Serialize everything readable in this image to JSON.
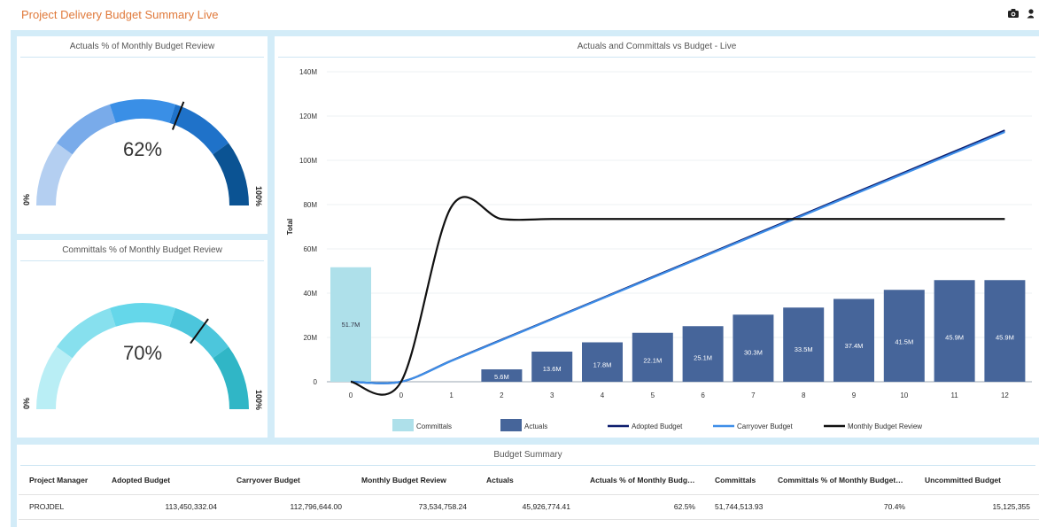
{
  "page": {
    "title": "Project Delivery Budget Summary Live",
    "icons": [
      "camera-icon",
      "user-icon"
    ]
  },
  "gauges": [
    {
      "title": "Actuals % of Monthly Budget Review",
      "value_label": "62%",
      "value": 62,
      "min_label": "0%",
      "max_label": "100%",
      "band_colors": [
        "#b4cff1",
        "#79abea",
        "#3a8fe6",
        "#1f72c9",
        "#0b5393"
      ]
    },
    {
      "title": "Committals % of Monthly Budget Review",
      "value_label": "70%",
      "value": 70,
      "min_label": "0%",
      "max_label": "100%",
      "band_colors": [
        "#b9eef5",
        "#87e0ee",
        "#65d7ea",
        "#4cc6dc",
        "#30b6c6"
      ]
    }
  ],
  "chart_data": {
    "type": "bar",
    "title": "Actuals and Committals vs Budget - Live",
    "ylabel": "Total",
    "xlabel": "",
    "ylim": [
      0,
      140
    ],
    "y_ticks": [
      "0",
      "20M",
      "40M",
      "60M",
      "80M",
      "100M",
      "120M",
      "140M"
    ],
    "categories": [
      "0",
      "0",
      "1",
      "2",
      "3",
      "4",
      "5",
      "6",
      "7",
      "8",
      "9",
      "10",
      "11",
      "12"
    ],
    "bar_series": [
      {
        "name": "Committals",
        "color": "#aee0ea",
        "values": [
          51.7,
          null,
          null,
          null,
          null,
          null,
          null,
          null,
          null,
          null,
          null,
          null,
          null,
          null
        ],
        "labels": [
          "51.7M",
          "",
          "",
          "",
          "",
          "",
          "",
          "",
          "",
          "",
          "",
          "",
          "",
          ""
        ]
      },
      {
        "name": "Actuals",
        "color": "#46659a",
        "values": [
          null,
          null,
          null,
          5.6,
          13.6,
          17.8,
          22.1,
          25.1,
          30.3,
          33.5,
          37.4,
          41.5,
          45.9,
          45.9
        ],
        "labels": [
          "",
          "",
          "",
          "5.6M",
          "13.6M",
          "17.8M",
          "22.1M",
          "25.1M",
          "30.3M",
          "33.5M",
          "37.4M",
          "41.5M",
          "45.9M",
          "45.9M"
        ]
      }
    ],
    "line_series": [
      {
        "name": "Adopted Budget",
        "color": "#0c1d6e",
        "values": [
          0,
          0,
          9.5,
          19,
          28.4,
          37.8,
          47.3,
          56.7,
          66.2,
          75.6,
          85.1,
          94.5,
          104,
          113.5
        ]
      },
      {
        "name": "Carryover Budget",
        "color": "#3e8ee8",
        "values": [
          0,
          0,
          9.4,
          18.8,
          28.2,
          37.6,
          47,
          56.4,
          65.8,
          75.2,
          84.6,
          94,
          103.4,
          112.8
        ]
      },
      {
        "name": "Monthly Budget Review",
        "color": "#111111",
        "values": [
          0,
          0,
          79,
          73.5,
          73.5,
          73.5,
          73.5,
          73.5,
          73.5,
          73.5,
          73.5,
          73.5,
          73.5,
          73.5
        ]
      }
    ],
    "legend": [
      {
        "name": "Committals",
        "kind": "bar",
        "color": "#aee0ea"
      },
      {
        "name": "Actuals",
        "kind": "bar",
        "color": "#46659a"
      },
      {
        "name": "Adopted Budget",
        "kind": "line",
        "color": "#0c1d6e"
      },
      {
        "name": "Carryover Budget",
        "kind": "line",
        "color": "#3e8ee8"
      },
      {
        "name": "Monthly Budget Review",
        "kind": "line",
        "color": "#111111"
      }
    ],
    "legend_position": "bottom",
    "grid": true
  },
  "table": {
    "title": "Budget Summary",
    "columns": [
      "Project Manager",
      "Adopted Budget",
      "Carryover Budget",
      "Monthly Budget Review",
      "Actuals",
      "Actuals % of Monthly Budget ...",
      "Committals",
      "Committals % of Monthly Budget Review",
      "Uncommitted Budget"
    ],
    "rows": [
      [
        "PROJDEL",
        "113,450,332.04",
        "112,796,644.00",
        "73,534,758.24",
        "45,926,774.41",
        "62.5%",
        "51,744,513.93",
        "70.4%",
        "15,125,355"
      ]
    ]
  }
}
